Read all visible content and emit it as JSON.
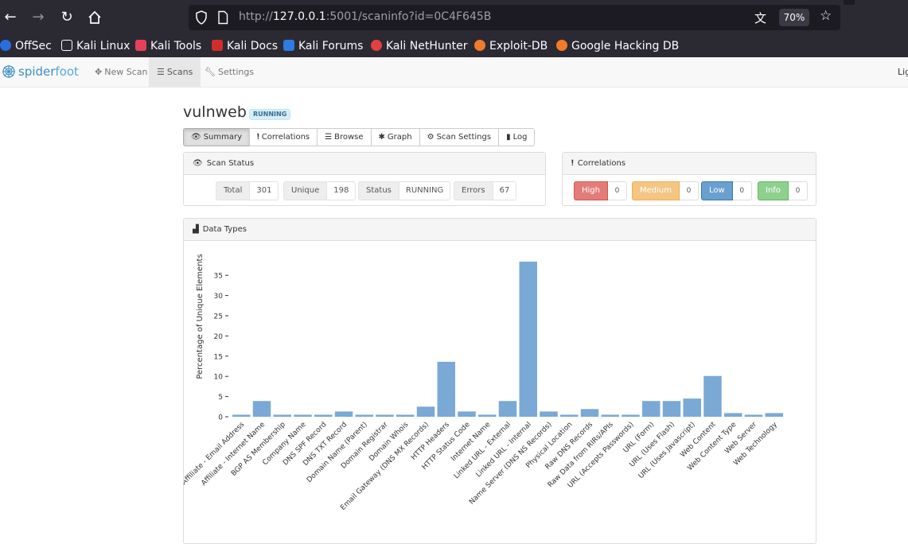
{
  "browser": {
    "url_prefix": "http://",
    "url_host": "127.0.0.1",
    "url_rest": ":5001/scaninfo?id=0C4F645B",
    "zoom": "70%",
    "bookmarks": [
      {
        "label": "OffSec",
        "color": "#2b6cdf"
      },
      {
        "label": "Kali Linux",
        "color": "#ffffff"
      },
      {
        "label": "Kali Tools",
        "color": "#e3425a"
      },
      {
        "label": "Kali Docs",
        "color": "#d22d2d"
      },
      {
        "label": "Kali Forums",
        "color": "#2f7be0"
      },
      {
        "label": "Kali NetHunter",
        "color": "#e34040"
      },
      {
        "label": "Exploit-DB",
        "color": "#f07b2b"
      },
      {
        "label": "Google Hacking DB",
        "color": "#f07b2b"
      }
    ]
  },
  "app": {
    "logo_a": "spider",
    "logo_b": "foot",
    "nav": {
      "new_scan": "New Scan",
      "scans": "Scans",
      "settings": "Settings",
      "edge": "Lig"
    }
  },
  "scan": {
    "name": "vulnweb",
    "status_badge": "RUNNING",
    "tabs": [
      "Summary",
      "Correlations",
      "Browse",
      "Graph",
      "Scan Settings",
      "Log"
    ]
  },
  "scan_status": {
    "title": "Scan Status",
    "stats": [
      {
        "label": "Total",
        "value": "301"
      },
      {
        "label": "Unique",
        "value": "198"
      },
      {
        "label": "Status",
        "value": "RUNNING"
      },
      {
        "label": "Errors",
        "value": "67"
      }
    ]
  },
  "correlations": {
    "title": "Correlations",
    "items": [
      {
        "label": "High",
        "value": "0",
        "color": "#d9534f"
      },
      {
        "label": "Medium",
        "value": "0",
        "color": "#f0ad4e"
      },
      {
        "label": "Low",
        "value": "0",
        "color": "#337ab7"
      },
      {
        "label": "Info",
        "value": "0",
        "color": "#5cb85c"
      }
    ]
  },
  "data_types": {
    "title": "Data Types"
  },
  "chart_data": {
    "type": "bar",
    "ylabel": "Percentage of Unique Elements",
    "ylim": [
      0,
      37
    ],
    "yticks": [
      0,
      5,
      10,
      15,
      20,
      25,
      30,
      35
    ],
    "bar_color": "#7aa9d6",
    "categories": [
      "Affiliate - Email Address",
      "Affiliate - Internet Name",
      "BGP AS Membership",
      "Company Name",
      "DNS SPF Record",
      "DNS TXT Record",
      "Domain Name (Parent)",
      "Domain Registrar",
      "Domain Whois",
      "Email Gateway (DNS MX Records)",
      "HTTP Headers",
      "HTTP Status Code",
      "Internet Name",
      "Linked URL - External",
      "Linked URL - Internal",
      "Name Server (DNS NS Records)",
      "Physical Location",
      "Raw DNS Records",
      "Raw Data from RIRs/APIs",
      "URL (Accepts Passwords)",
      "URL (Form)",
      "URL (Uses Flash)",
      "URL (Uses Javascript)",
      "Web Content",
      "Web Content Type",
      "Web Server",
      "Web Technology"
    ],
    "values": [
      0.5,
      3.9,
      0.5,
      0.5,
      0.5,
      1.3,
      0.5,
      0.5,
      0.5,
      2.5,
      13.6,
      1.3,
      0.5,
      3.9,
      38.4,
      1.3,
      0.5,
      1.9,
      0.5,
      0.5,
      3.9,
      3.9,
      4.5,
      10.1,
      0.9,
      0.5,
      0.9
    ]
  }
}
